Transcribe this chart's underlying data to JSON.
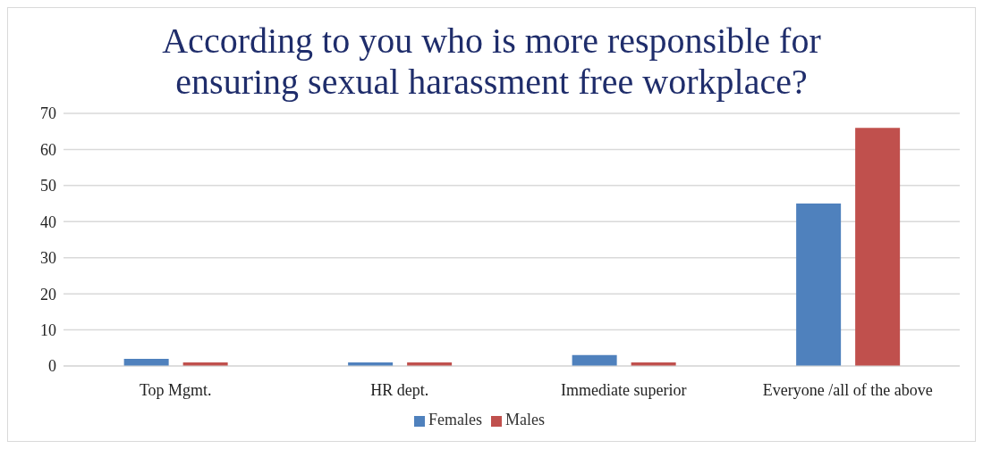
{
  "chart_data": {
    "type": "bar",
    "title": "According to you who is more responsible for ensuring sexual harassment free workplace?",
    "categories": [
      "Top Mgmt.",
      "HR dept.",
      "Immediate superior",
      "Everyone /all of the above"
    ],
    "series": [
      {
        "name": "Females",
        "color": "#4f81bd",
        "values": [
          2,
          1,
          3,
          45
        ]
      },
      {
        "name": "Males",
        "color": "#c0504d",
        "values": [
          1,
          1,
          1,
          66
        ]
      }
    ],
    "ylim": [
      0,
      70
    ],
    "yticks": [
      0,
      10,
      20,
      30,
      40,
      50,
      60,
      70
    ],
    "grid": "y",
    "legend": "bottom"
  }
}
